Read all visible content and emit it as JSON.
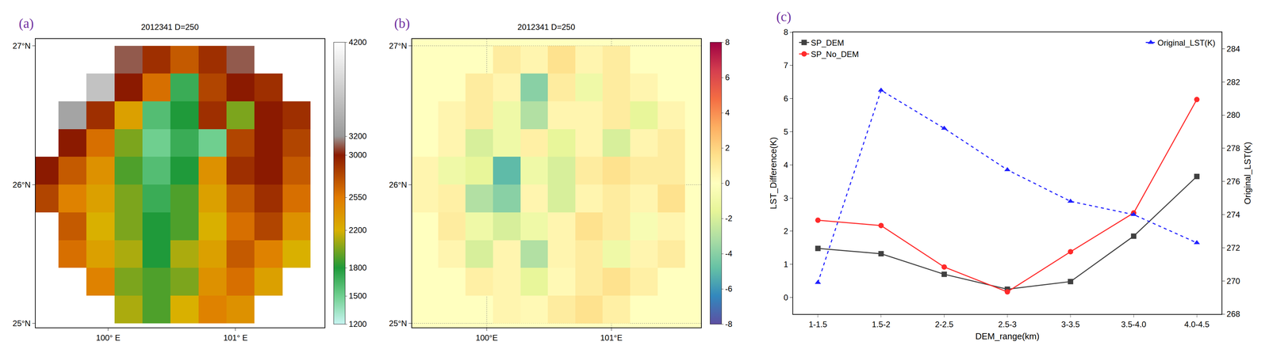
{
  "chart_data": [
    {
      "type": "heatmap",
      "panel_label": "(a)",
      "title": "2012341 D=250",
      "x": [
        99.5,
        99.72,
        99.94,
        100.16,
        100.38,
        100.6,
        100.82,
        101.04,
        101.26,
        101.48
      ],
      "y": [
        25.1,
        25.3,
        25.5,
        25.7,
        25.9,
        26.1,
        26.3,
        26.5,
        26.7,
        26.9
      ],
      "z": [
        [
          null,
          null,
          null,
          2100,
          1900,
          2200,
          2500,
          2400,
          null,
          null
        ],
        [
          null,
          null,
          2500,
          2000,
          1900,
          2000,
          2400,
          2600,
          2300,
          null
        ],
        [
          null,
          2600,
          2300,
          2100,
          1800,
          2100,
          2300,
          2700,
          2500,
          2200
        ],
        [
          null,
          2700,
          2200,
          2000,
          1800,
          1900,
          2200,
          2600,
          2800,
          2400
        ],
        [
          2800,
          2500,
          2300,
          2000,
          1700,
          1900,
          2300,
          2700,
          2900,
          2600
        ],
        [
          3000,
          2700,
          2400,
          1900,
          1600,
          1800,
          2400,
          2900,
          3000,
          2700
        ],
        [
          null,
          3000,
          2600,
          2000,
          1500,
          1700,
          1500,
          2800,
          3000,
          2800
        ],
        [
          null,
          3300,
          2900,
          2300,
          1600,
          1800,
          2900,
          2000,
          3000,
          2900
        ],
        [
          null,
          null,
          3600,
          3000,
          2600,
          1700,
          2800,
          3000,
          2900,
          null
        ],
        [
          null,
          null,
          null,
          3100,
          2900,
          2700,
          2900,
          3100,
          null,
          null
        ]
      ],
      "xlim": [
        99.43,
        101.7
      ],
      "ylim": [
        24.97,
        27.05
      ],
      "xticks": [
        {
          "value": 100,
          "label": "100° E"
        },
        {
          "value": 101,
          "label": "101° E"
        }
      ],
      "yticks": [
        {
          "value": 25,
          "label": "25°N"
        },
        {
          "value": 26,
          "label": "26°N"
        },
        {
          "value": 27,
          "label": "27°N"
        }
      ],
      "zlim": [
        1200,
        4200
      ],
      "zticks": [
        1200,
        1500,
        1800,
        2200,
        2550,
        3000,
        3200,
        4200
      ],
      "grid": false
    },
    {
      "type": "heatmap",
      "panel_label": "(b)",
      "title": "2012341 D=250",
      "x": [
        99.5,
        99.72,
        99.94,
        100.16,
        100.38,
        100.6,
        100.82,
        101.04,
        101.26,
        101.48
      ],
      "y": [
        25.1,
        25.3,
        25.5,
        25.7,
        25.9,
        26.1,
        26.3,
        26.5,
        26.7,
        26.9
      ],
      "z": [
        [
          null,
          null,
          null,
          0.5,
          0.3,
          1,
          1.5,
          0.8,
          null,
          null
        ],
        [
          null,
          null,
          0.8,
          0.5,
          -1.5,
          0.3,
          1,
          1.5,
          0.8,
          null
        ],
        [
          null,
          0.5,
          -2,
          0.5,
          -3,
          0.5,
          1,
          -1,
          0.5,
          1
        ],
        [
          null,
          1,
          -1,
          -2,
          -1,
          0.5,
          1.5,
          1,
          -0.5,
          0.5
        ],
        [
          0.5,
          0.8,
          -3,
          -4,
          0.5,
          -2,
          0.5,
          1,
          0.5,
          1.5
        ],
        [
          0.5,
          -1,
          -1.5,
          -5,
          -1,
          -2,
          1,
          1.5,
          1,
          1
        ],
        [
          null,
          0.5,
          -2,
          -1,
          0.8,
          -1.5,
          0.5,
          -2,
          0.5,
          1
        ],
        [
          null,
          0.5,
          1,
          -1,
          -3,
          0.5,
          0.5,
          1,
          -1.5,
          0.5
        ],
        [
          null,
          null,
          1,
          0.5,
          -4,
          1,
          -1,
          1,
          0.5,
          null
        ],
        [
          null,
          null,
          null,
          1,
          0.5,
          1.5,
          0.5,
          1,
          null,
          null
        ]
      ],
      "xlim": [
        99.4,
        101.72
      ],
      "ylim": [
        24.97,
        27.05
      ],
      "xticks": [
        {
          "value": 100,
          "label": "100°E"
        },
        {
          "value": 101,
          "label": "101°E"
        }
      ],
      "yticks": [
        {
          "value": 25,
          "label": "25°N"
        },
        {
          "value": 26,
          "label": "26°N"
        },
        {
          "value": 27,
          "label": "27°N"
        }
      ],
      "zlim": [
        -8,
        8
      ],
      "zticks": [
        -8,
        -6,
        -4,
        -2,
        0,
        2,
        4,
        6,
        8
      ],
      "grid": true
    },
    {
      "type": "line",
      "panel_label": "(c)",
      "categories": [
        "1-1.5",
        "1.5-2",
        "2-2.5",
        "2.5-3",
        "3-3.5",
        "3.5-4.0",
        "4.0-4.5"
      ],
      "xlabel": "DEM_range(km)",
      "ylabel": "LST_Difference(K)",
      "y2label": "Original_LST(K)",
      "ylim": [
        -0.5,
        8
      ],
      "yticks": [
        0,
        1,
        2,
        3,
        4,
        5,
        6,
        7,
        8
      ],
      "y2lim": [
        268,
        285
      ],
      "y2ticks": [
        268,
        270,
        272,
        274,
        276,
        278,
        280,
        282,
        284
      ],
      "grid": false,
      "series": [
        {
          "name": "SP_DEM",
          "color": "#404040",
          "marker": "square",
          "line_style": "solid",
          "legend": "upper left",
          "values": [
            1.48,
            1.32,
            0.7,
            0.25,
            0.48,
            1.85,
            3.65
          ]
        },
        {
          "name": "SP_No_DEM",
          "color": "#ff2a2a",
          "marker": "circle",
          "line_style": "solid",
          "legend": "upper left",
          "values": [
            2.33,
            2.17,
            0.92,
            0.17,
            1.38,
            2.55,
            5.97
          ]
        },
        {
          "name": "Original_LST(K)",
          "color": "#1f1fff",
          "marker": "triangle-up",
          "line_style": "dash",
          "legend": "upper right",
          "axis": "y2",
          "values": [
            269.9,
            281.5,
            279.2,
            276.7,
            274.8,
            274.0,
            272.3
          ]
        }
      ]
    }
  ]
}
